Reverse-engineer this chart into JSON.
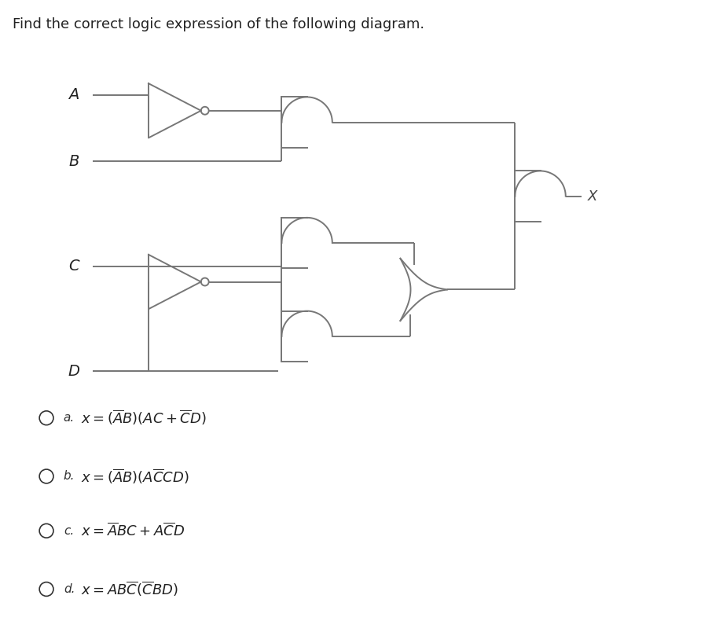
{
  "title": "Find the correct logic expression of the following diagram.",
  "title_fontsize": 13,
  "bg": "#ffffff",
  "gc": "#777777",
  "wc": "#777777",
  "lw": 1.4,
  "math_expressions": [
    "$x = (\\overline{A}B)(AC + \\overline{C}D)$",
    "$x = (\\overline{A}B)(A\\overline{C}CD)$",
    "$x = \\overline{A}BC + A\\overline{C}D$",
    "$x = AB\\overline{C}(\\overline{C}BD)$"
  ],
  "option_labels": [
    "a.",
    "b.",
    "c.",
    "d."
  ]
}
